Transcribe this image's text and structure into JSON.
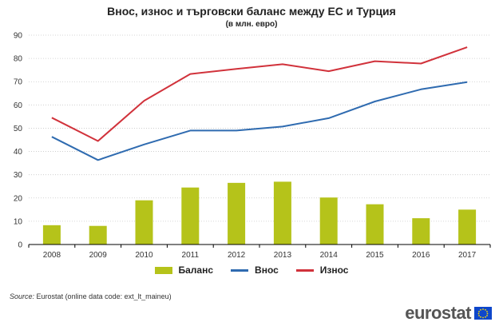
{
  "header": {
    "title": "Внос, износ и търговски баланс между ЕС и Турция",
    "subtitle": "(в млн. евро)"
  },
  "colors": {
    "balance": "#b5c31a",
    "import": "#2f6bb0",
    "export": "#d1323b"
  },
  "chart_data": {
    "type": "bar",
    "categories": [
      "2008",
      "2009",
      "2010",
      "2011",
      "2012",
      "2013",
      "2014",
      "2015",
      "2016",
      "2017"
    ],
    "ylim": [
      0,
      90
    ],
    "yticks": [
      0,
      10,
      20,
      30,
      40,
      50,
      60,
      70,
      80,
      90
    ],
    "grid": true,
    "legend_position": "bottom",
    "series": [
      {
        "name": "Баланс",
        "kind": "bar",
        "values": [
          8.3,
          8.0,
          19.0,
          24.5,
          26.5,
          27.0,
          20.2,
          17.3,
          11.3,
          15.0
        ]
      },
      {
        "name": "Внос",
        "kind": "line",
        "values": [
          46.3,
          36.3,
          43.0,
          49.0,
          49.0,
          50.7,
          54.3,
          61.5,
          66.7,
          69.8
        ]
      },
      {
        "name": "Износ",
        "kind": "line",
        "values": [
          54.5,
          44.5,
          61.8,
          73.3,
          75.5,
          77.5,
          74.5,
          78.8,
          77.8,
          84.8
        ]
      }
    ]
  },
  "legend": {
    "balance": "Баланс",
    "import": "Внос",
    "export": "Износ"
  },
  "source": {
    "label": "Source:",
    "text": "Eurostat (online data code: ext_lt_maineu)"
  },
  "logo": {
    "text": "eurostat",
    "icon": "eu-flag-icon"
  }
}
